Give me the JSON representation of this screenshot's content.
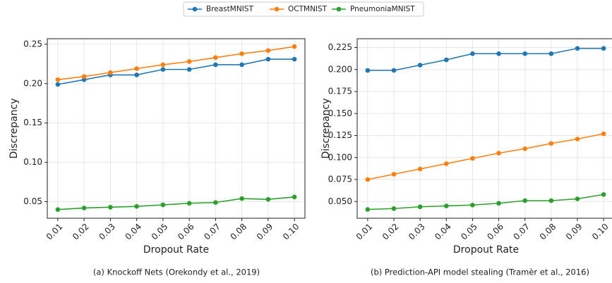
{
  "chart_data": [
    {
      "type": "line",
      "caption": "(a) Knockoff Nets (Orekondy et al., 2019)",
      "xlabel": "Dropout Rate",
      "ylabel": "Discrepancy",
      "categories": [
        "0.01",
        "0.02",
        "0.03",
        "0.04",
        "0.05",
        "0.06",
        "0.07",
        "0.08",
        "0.09",
        "0.10"
      ],
      "ylim": [
        0.029,
        0.257
      ],
      "yticks": [
        0.05,
        {
          "value": 0.1,
          "label": "0.10"
        },
        0.15,
        {
          "value": 0.2,
          "label": "0.20"
        },
        0.25
      ],
      "grid": true,
      "series": [
        {
          "name": "BreastMNIST",
          "color": "#1f77b4",
          "values": [
            0.199,
            0.205,
            0.211,
            0.211,
            0.218,
            0.218,
            0.224,
            0.224,
            0.231,
            0.231
          ]
        },
        {
          "name": "OCTMNIST",
          "color": "#ff7f0e",
          "values": [
            0.205,
            0.209,
            0.214,
            0.219,
            0.224,
            0.228,
            0.233,
            0.238,
            0.242,
            0.247
          ]
        },
        {
          "name": "PneumoniaMNIST",
          "color": "#2ca02c",
          "values": [
            0.04,
            0.042,
            0.043,
            0.044,
            0.046,
            0.048,
            0.049,
            0.054,
            0.053,
            0.056
          ]
        }
      ]
    },
    {
      "type": "line",
      "caption": "(b) Prediction-API model stealing (Tramèr et al., 2016)",
      "xlabel": "Dropout Rate",
      "ylabel": "Discrepancy",
      "categories": [
        "0.01",
        "0.02",
        "0.03",
        "0.04",
        "0.05",
        "0.06",
        "0.07",
        "0.08",
        "0.09",
        "0.10"
      ],
      "ylim": [
        0.031,
        0.235
      ],
      "yticks": [
        {
          "value": 0.05,
          "label": "0.050"
        },
        0.075,
        {
          "value": 0.1,
          "label": "0.100"
        },
        0.125,
        {
          "value": 0.15,
          "label": "0.150"
        },
        0.175,
        {
          "value": 0.2,
          "label": "0.200"
        },
        0.225
      ],
      "grid": true,
      "series": [
        {
          "color": "#1f77b4",
          "values": [
            0.199,
            0.199,
            0.205,
            0.211,
            0.218,
            0.218,
            0.218,
            0.218,
            0.224,
            0.224
          ]
        },
        {
          "color": "#ff7f0e",
          "values": [
            0.075,
            0.081,
            0.087,
            0.093,
            0.099,
            0.105,
            0.11,
            0.116,
            0.121,
            0.127
          ]
        },
        {
          "color": "#2ca02c",
          "values": [
            0.041,
            0.042,
            0.044,
            0.045,
            0.046,
            0.048,
            0.051,
            0.051,
            0.053,
            0.058
          ]
        }
      ]
    }
  ]
}
